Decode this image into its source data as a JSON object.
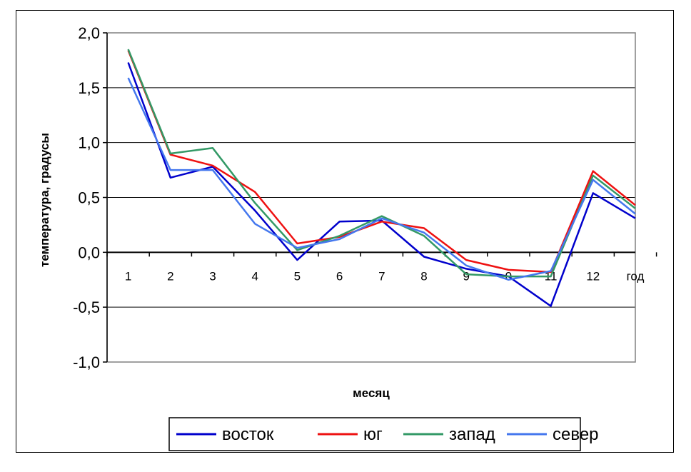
{
  "chart_data": {
    "type": "line",
    "title": "",
    "xlabel": "месяц",
    "ylabel": "температура, градусы",
    "categories": [
      "1",
      "2",
      "3",
      "4",
      "5",
      "6",
      "7",
      "8",
      "9",
      "0",
      "11",
      "12",
      "год"
    ],
    "ylim": [
      -1.0,
      2.0
    ],
    "yticks": [
      "2,0",
      "1,5",
      "1,0",
      "0,5",
      "0,0",
      "-0,5",
      "-1,0"
    ],
    "ytick_values": [
      2.0,
      1.5,
      1.0,
      0.5,
      0.0,
      -0.5,
      -1.0
    ],
    "grid": true,
    "legend_position": "bottom",
    "series": [
      {
        "name": "восток",
        "color": "#0000cc",
        "values": [
          1.73,
          0.68,
          0.78,
          0.38,
          -0.07,
          0.28,
          0.29,
          -0.04,
          -0.15,
          -0.22,
          -0.49,
          0.54,
          0.31
        ]
      },
      {
        "name": "юг",
        "color": "#ee1111",
        "values": [
          1.84,
          0.89,
          0.79,
          0.55,
          0.08,
          0.14,
          0.28,
          0.22,
          -0.07,
          -0.16,
          -0.18,
          0.74,
          0.43
        ]
      },
      {
        "name": "запад",
        "color": "#339966",
        "values": [
          1.85,
          0.9,
          0.95,
          0.45,
          0.02,
          0.15,
          0.33,
          0.15,
          -0.2,
          -0.22,
          -0.22,
          0.7,
          0.4
        ]
      },
      {
        "name": "север",
        "color": "#4477ee",
        "values": [
          1.59,
          0.75,
          0.75,
          0.26,
          0.04,
          0.12,
          0.31,
          0.18,
          -0.12,
          -0.25,
          -0.17,
          0.66,
          0.35
        ]
      }
    ]
  }
}
